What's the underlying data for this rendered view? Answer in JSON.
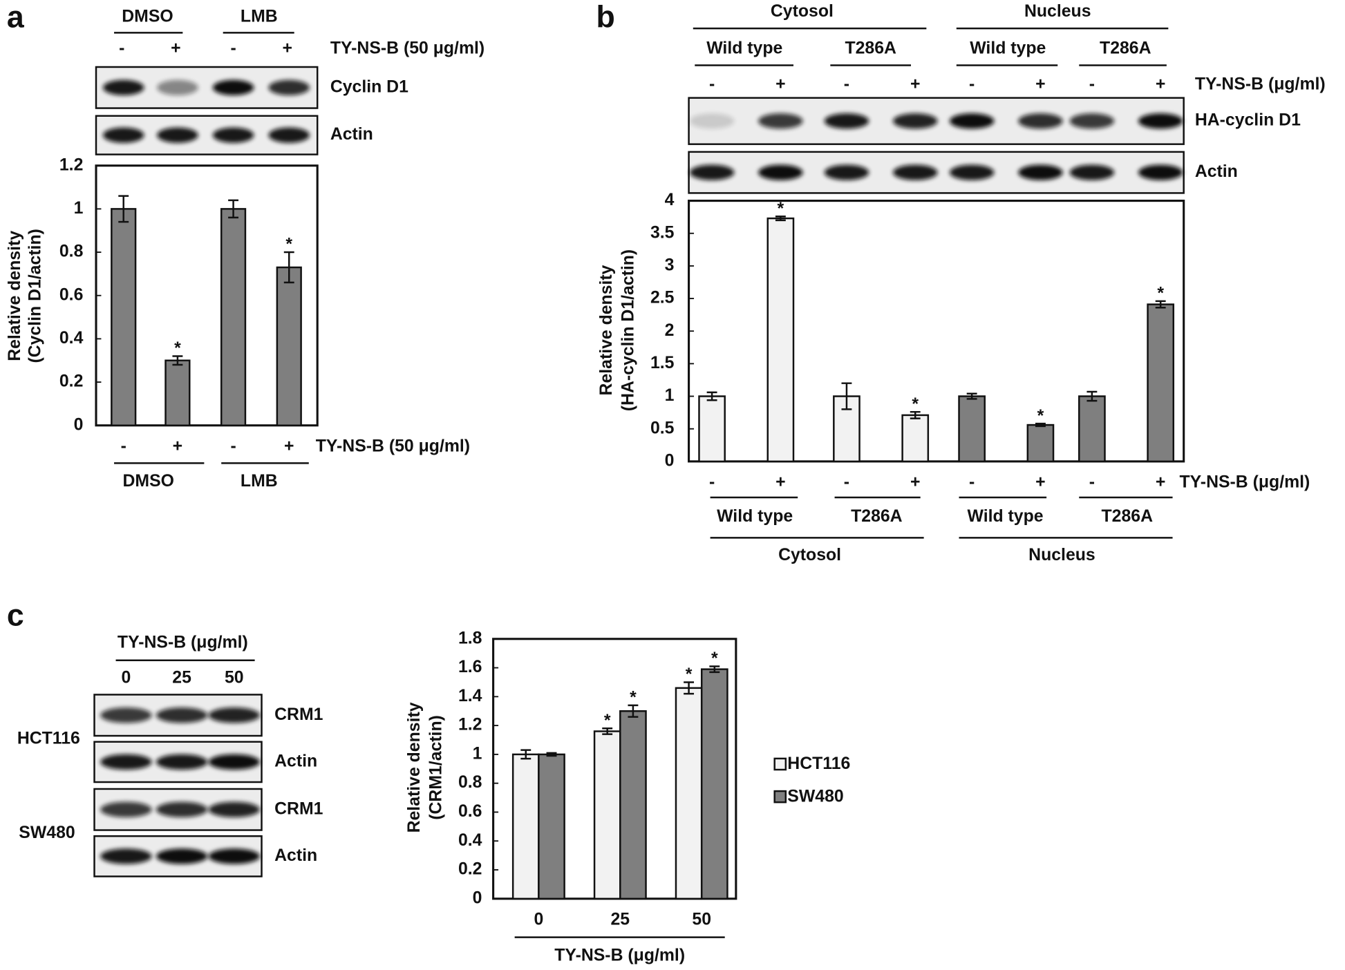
{
  "chart_data": [
    {
      "panel": "a",
      "type": "bar",
      "y_label": [
        "Relative density",
        "(Cyclin D1/actin)"
      ],
      "groups": [
        "DMSO",
        "LMB"
      ],
      "categories": [
        "-",
        "+",
        "-",
        "+"
      ],
      "treatment": "TY-NS-B (50 μg/ml)",
      "blots": [
        "Cyclin D1",
        "Actin"
      ],
      "values": [
        1,
        0.3,
        1,
        0.73
      ],
      "errors": [
        0.06,
        0.02,
        0.04,
        0.07
      ],
      "significance": [
        null,
        "*",
        null,
        "*"
      ],
      "color": "#7f7f7f",
      "ylim": [
        0,
        1.2
      ],
      "yticks": [
        0,
        0.2,
        0.4,
        0.6,
        0.8,
        1,
        1.2
      ]
    },
    {
      "panel": "b",
      "type": "bar",
      "y_label": [
        "Relative density",
        "(HA-cyclin D1/actin)"
      ],
      "groups": [
        "Cytosol",
        "Nucleus"
      ],
      "subgroups": [
        "Wild type",
        "T286A",
        "Wild type",
        "T286A"
      ],
      "categories": [
        "-",
        "+",
        "-",
        "+",
        "-",
        "+",
        "-",
        "+"
      ],
      "treatment": "TY-NS-B (μg/ml)",
      "blots": [
        "HA-cyclin D1",
        "Actin"
      ],
      "values": [
        1,
        3.73,
        1,
        0.71,
        1,
        0.56,
        1,
        2.41
      ],
      "errors": [
        0.06,
        0.03,
        0.2,
        0.05,
        0.04,
        0.02,
        0.07,
        0.05
      ],
      "significance": [
        null,
        "*",
        null,
        "*",
        null,
        "*",
        null,
        "*"
      ],
      "colors": [
        "#f2f2f2",
        "#f2f2f2",
        "#f2f2f2",
        "#f2f2f2",
        "#7f7f7f",
        "#7f7f7f",
        "#7f7f7f",
        "#7f7f7f"
      ],
      "ylim": [
        0,
        4
      ],
      "yticks": [
        0,
        0.5,
        1,
        1.5,
        2,
        2.5,
        3,
        3.5,
        4
      ]
    },
    {
      "panel": "c",
      "type": "grouped_bar",
      "y_label": [
        "Relative density",
        "(CRM1/actin)"
      ],
      "categories": [
        "0",
        "25",
        "50"
      ],
      "x_label": "TY-NS-B (μg/ml)",
      "blot_header": "TY-NS-B (μg/ml)",
      "cell_lines": [
        "HCT116",
        "SW480"
      ],
      "blots": [
        "CRM1",
        "Actin",
        "CRM1",
        "Actin"
      ],
      "series": [
        {
          "name": "HCT116",
          "color": "#f2f2f2",
          "values": [
            1,
            1.16,
            1.46
          ],
          "errors": [
            0.03,
            0.02,
            0.04
          ],
          "significance": [
            null,
            "*",
            "*"
          ]
        },
        {
          "name": "SW480",
          "color": "#7f7f7f",
          "values": [
            1,
            1.3,
            1.59
          ],
          "errors": [
            0.01,
            0.04,
            0.02
          ],
          "significance": [
            null,
            "*",
            "*"
          ]
        }
      ],
      "legend": "right",
      "ylim": [
        0,
        1.8
      ],
      "yticks": [
        0,
        0.2,
        0.4,
        0.6,
        0.8,
        1,
        1.2,
        1.4,
        1.6,
        1.8
      ]
    }
  ]
}
